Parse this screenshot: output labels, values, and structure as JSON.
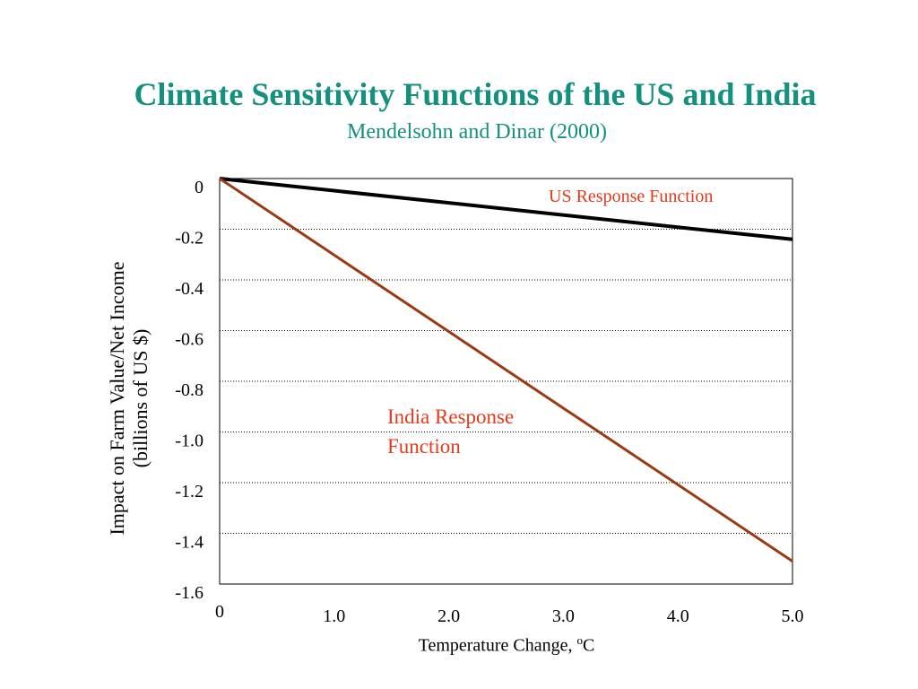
{
  "slide": {
    "title": "Climate Sensitivity Functions of the US and India",
    "subtitle": "Mendelsohn and Dinar (2000)"
  },
  "chart_data": {
    "type": "line",
    "title": "Climate Sensitivity Functions of the US and India",
    "subtitle": "Mendelsohn and Dinar (2000)",
    "ylabel_line1": "Impact on Farm Value/Net Income",
    "ylabel_line2": "(billions of US $)",
    "xlabel_text": "Temperature Change, ",
    "xlabel_sup": "o",
    "xlabel_unit": "C",
    "xlim": [
      0,
      5
    ],
    "ylim": [
      -1.6,
      0
    ],
    "xticks": [
      {
        "value": 0,
        "label": "0"
      },
      {
        "value": 1,
        "label": "1.0"
      },
      {
        "value": 2,
        "label": "2.0"
      },
      {
        "value": 3,
        "label": "3.0"
      },
      {
        "value": 4,
        "label": "4.0"
      },
      {
        "value": 5,
        "label": "5.0"
      }
    ],
    "yticks": [
      {
        "value": 0,
        "label": "0"
      },
      {
        "value": -0.2,
        "label": "-0.2"
      },
      {
        "value": -0.4,
        "label": "-0.4"
      },
      {
        "value": -0.6,
        "label": "-0.6"
      },
      {
        "value": -0.8,
        "label": "-0.8"
      },
      {
        "value": -1.0,
        "label": "-1.0"
      },
      {
        "value": -1.2,
        "label": "-1.2"
      },
      {
        "value": -1.4,
        "label": "-1.4"
      },
      {
        "value": -1.6,
        "label": "-1.6"
      }
    ],
    "grid": "horizontal dotted",
    "series": [
      {
        "name": "US Response Function",
        "color": "#000000",
        "x": [
          0,
          5
        ],
        "y": [
          0,
          -0.24
        ]
      },
      {
        "name": "India Response Function",
        "color": "#9b3a12",
        "x": [
          0,
          5
        ],
        "y": [
          0,
          -1.51
        ]
      }
    ],
    "label_color": "#e6391c"
  }
}
